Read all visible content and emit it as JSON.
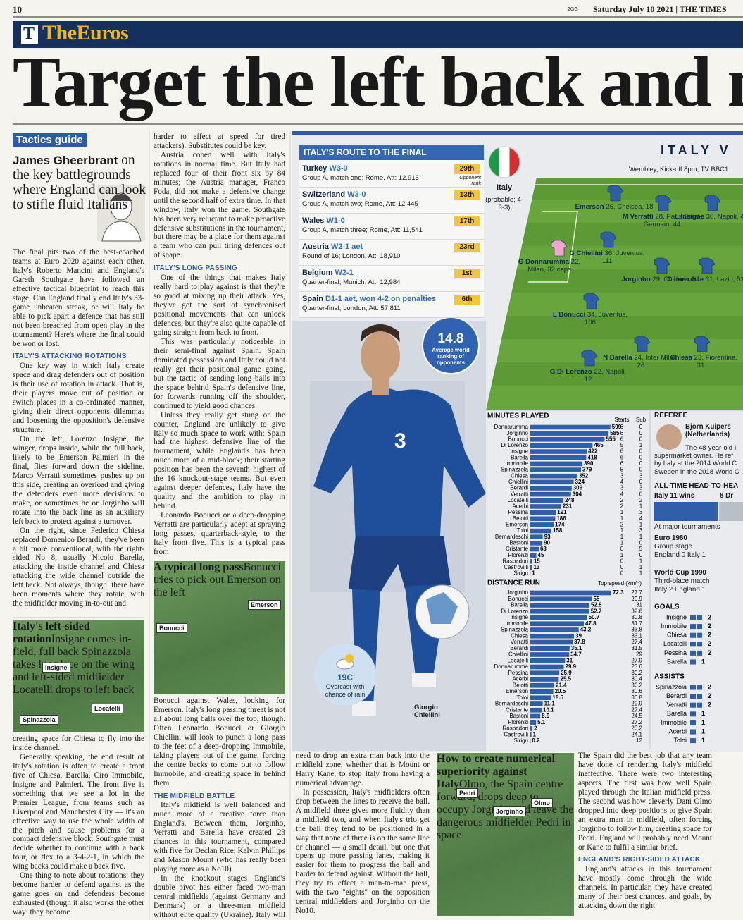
{
  "header": {
    "page": "10",
    "code": "2GG",
    "date": "Saturday July 10 2021 | THE TIMES",
    "logo": "T",
    "section": "TheEuros"
  },
  "headline": "Target the left back and ma",
  "tactics": {
    "label": "Tactics guide",
    "author": "James Gheerbrant",
    "standfirst": "on the key battlegrounds where England can look to stifle fluid Italians"
  },
  "article": {
    "col1a": [
      {
        "text": "The final pits two of the best-coached teams at Euro 2020 against each other. Italy's Roberto Mancini and England's Gareth Southgate have followed an effective tactical blueprint to reach this stage. Can England finally end Italy's 33-game unbeaten streak, or will Italy be able to pick apart a defence that has still not been breached from open play in the tournament? Here's where the final could be won or lost."
      },
      {
        "heading": "ITALY'S ATTACKING ROTATIONS"
      },
      {
        "text": "One key way in which Italy create space and drag defenders out of position is their use of rotation in attack. That is, their players move out of position or switch places in a co-ordinated manner, giving their direct opponents dilemmas and loosening the opposition's defensive structure."
      },
      {
        "text": "On the left, Lorenzo Insigne, the winger, drops inside, while the full back, likely to be Emerson Palmieri in the final, flies forward down the sideline. Marco Verratti sometimes pushes up on this side, creating an overload and giving the defenders even more decisions to make, or sometimes he or Jorginho will rotate into the back line as an auxiliary left back to protect against a turnover."
      },
      {
        "text": "On the right, since Federico Chiesa replaced Domenico Berardi, they've been a bit more conventional, with the right-sided No 8, usually Nicolo Barella, attacking the inside channel and Chiesa attacking the wide channel outside the left back. Not always, though: there have been moments where they rotate, with the midfielder moving in-to-out and"
      }
    ],
    "col1b": [
      {
        "text": "creating space for Chiesa to fly into the inside channel."
      },
      {
        "text": "Generally speaking, the end result of Italy's rotation is often to create a front five of Chiesa, Barella, Ciro Immobile, Insigne and Palmieri. The front five is something that we see a lot in the Premier League, from teams such as Liverpool and Manchester City — it's an effective way to use the whole width of the pitch and cause problems for a compact defensive block. Southgate must decide whether to continue with a back four, or flex to a 3-4-2-1, in which the wing backs could make a back five."
      },
      {
        "text": "One thing to note about rotations: they become harder to defend against as the game goes on and defenders become exhausted (though it also works the other way: they become"
      }
    ],
    "col2a": [
      {
        "text": "harder to effect at speed for tired attackers). Substitutes could be key."
      },
      {
        "text": "Austria coped well with Italy's rotations in normal time. But Italy had replaced four of their front six by 84 minutes; the Austria manager, Franco Foda, did not make a defensive change until the second half of extra time. In that window, Italy won the game. Southgate has been very reluctant to make proactive defensive substitutions in the tournament, but there may be a place for them against a team who can pull tiring defences out of shape."
      },
      {
        "heading": "ITALY'S LONG PASSING"
      },
      {
        "text": "One of the things that makes Italy really hard to play against is that they're so good at mixing up their attack. Yes, they've got the sort of synchronised positional movements that can unlock defences, but they're also quite capable of going straight from back to front."
      },
      {
        "text": "This was particularly noticeable in their semi-final against Spain. Spain dominated possession and Italy could not really get their positional game going, but the tactic of sending long balls into the space behind Spain's defensive line, for forwards running off the shoulder, continued to yield good chances."
      },
      {
        "text": "Unless they really get stung on the counter, England are unlikely to give Italy so much space to work with: Spain had the highest defensive line of the tournament, while England's has been much more of a mid-block; their starting position has been the seventh highest of the 16 knockout-stage teams. But even against deeper defences, Italy have the quality and the ambition to play in behind."
      },
      {
        "text": "Leonardo Bonucci or a deep-dropping Verratti are particularly adept at spraying long passes, quarterback-style, to the Italy front five. This is a typical pass from"
      }
    ],
    "col2b": [
      {
        "text": "Bonucci against Wales, looking for Emerson. Italy's long passing threat is not all about long balls over the top, though. Often Leonardo Bonucci or Giorgio Chiellini will look to punch a long pass to the feet of a deep-dropping Immobile, taking players out of the game, forcing the centre backs to come out to follow Immobile, and creating space in behind them."
      },
      {
        "heading": "THE MIDFIELD BATTLE"
      },
      {
        "text": "Italy's midfield is well balanced and much more of a creative force than England's. Between them, Jorginho, Verratti and Barella have created 23 chances in this tournament, compared with five for Declan Rice, Kalvin Phillips and Mason Mount (who has really been playing more as a No10)."
      },
      {
        "text": "In the knockout stages England's double pivot has either faced two-man central midfields (against Germany and Denmark) or a three-man midfield without elite quality (Ukraine). Italy will be different, and there will be times when England"
      }
    ],
    "col3": [
      {
        "text": "need to drop an extra man back into the midfield zone, whether that is Mount or Harry Kane, to stop Italy from having a numerical advantage."
      },
      {
        "text": "In possession, Italy's midfielders often drop between the lines to receive the ball. A midfield three gives more fluidity than a midfield two, and when Italy's trio get the ball they tend to be positioned in a way that none of three is on the same line or channel — a small detail, but one that opens up more passing lanes, making it easier for them to progress the ball and harder to defend against. Without the ball, they try to effect a man-to-man press, with the two \"eights\" on the opposition central midfielders and Jorginho on the No10."
      }
    ],
    "col5": [
      {
        "text": "The Spain did the best job that any team have done of rendering Italy's midfield ineffective. There were two interesting aspects. The first was how well Spain played through the Italian midfield press. The second was how cleverly Dani Olmo dropped into deep positions to give Spain an extra man in midfield, often forcing Jorginho to follow him, creating space for Pedri. England will probably need Mount or Kane to fulfil a similar brief."
      },
      {
        "heading": "ENGLAND'S RIGHT-SIDED ATTACK"
      },
      {
        "text": "England's attacks in this tournament have mostly come through the wide channels. In particular, they have created many of their best chances, and goals, by attacking down the right"
      }
    ]
  },
  "graphics": [
    {
      "title": "Italy's left-sided rotation",
      "caption": "Insigne comes in-field, full back Spinazzola takes his place on the wing and left-sided midfielder Locatelli drops to left back",
      "labels": [
        "Insigne",
        "Locatelli",
        "Spinazzola"
      ]
    },
    {
      "title": "A typical long pass",
      "caption": "Bonucci tries to pick out Emerson on the left",
      "labels": [
        "Emerson",
        "Bonucci"
      ]
    },
    {
      "title": "How to create numerical superiority against Italy",
      "caption": "Olmo, the Spain centre forward, drops deep to occupy Jorginho and leave the dangerous midfielder Pedri in space",
      "labels": [
        "Pedri",
        "Olmo",
        "Jorginho"
      ]
    }
  ],
  "route": {
    "title": "ITALY'S ROUTE TO THE FINAL",
    "rank_note": "Opponent rank",
    "matches": [
      {
        "team": "Turkey",
        "result": "W3-0",
        "details": "Group A, match one; Rome, Att: 12,916",
        "rank": "29th"
      },
      {
        "team": "Switzerland",
        "result": "W3-0",
        "details": "Group A, match two; Rome, Att: 12,445",
        "rank": "13th"
      },
      {
        "team": "Wales",
        "result": "W1-0",
        "details": "Group A, match three; Rome, Att: 11,541",
        "rank": "17th"
      },
      {
        "team": "Austria",
        "result": "W2-1 aet",
        "details": "Round of 16; London, Att: 18,910",
        "rank": "23rd"
      },
      {
        "team": "Belgium",
        "result": "W2-1",
        "details": "Quarter-final; Munich, Att: 12,984",
        "rank": "1st"
      },
      {
        "team": "Spain",
        "result": "D1-1 aet, won 4-2 on penalties",
        "details": "Quarter-final; London, Att: 57,811",
        "rank": "6th"
      }
    ]
  },
  "average": {
    "value": "14.8",
    "label": "Average world ranking of opponents"
  },
  "weather": {
    "temp": "19C",
    "desc": "Overcast with chance of rain"
  },
  "photo_caption": "Giorgio Chiellini",
  "lineup": {
    "title": "ITALY V",
    "venue": "Wembley, Kick-off 8pm, TV BBC1",
    "team": "Italy",
    "formation": "(probable; 4-3-3)"
  },
  "players": [
    {
      "name": "G Donnarumma",
      "detail": "22, Milan, 32 caps"
    },
    {
      "name": "G Chiellini",
      "detail": "36, Juventus, 111"
    },
    {
      "name": "L Bonucci",
      "detail": "34, Juventus, 106"
    },
    {
      "name": "G Di Lorenzo",
      "detail": "22, Napoli, 12"
    },
    {
      "name": "Emerson",
      "detail": "26, Chelsea, 18"
    },
    {
      "name": "M Verratti",
      "detail": "28, Paris Saint-Germain, 44"
    },
    {
      "name": "L Insigne",
      "detail": "30, Napoli, 46"
    },
    {
      "name": "Jorginho",
      "detail": "29, Chelsea, 34"
    },
    {
      "name": "C Immobile",
      "detail": "31, Lazio, 51"
    },
    {
      "name": "N Barella",
      "detail": "24, Inter Milan, 28"
    },
    {
      "name": "F Chiesa",
      "detail": "23, Fiorentina, 31"
    }
  ],
  "referee": {
    "heading": "REFEREE",
    "name": "Bjorn Kuipers",
    "country": "(Netherlands)",
    "lines": [
      "The 48-year-old I",
      "supermarket owner. He ref",
      "by Italy at the 2014 World C",
      "Sweden in the 2018 World C"
    ]
  },
  "head_to_head": {
    "heading": "ALL-TIME HEAD-TO-HEA",
    "italy": "Italy",
    "wins": "11 wins",
    "draws": "8 Dr",
    "subheading": "At major tournaments",
    "matches": [
      {
        "event": "Euro 1980",
        "stage": "Group stage",
        "score": "England 0 Italy 1"
      },
      {
        "event": "World Cup 1990",
        "stage": "Third-place match",
        "score": "Italy 2 England 1"
      }
    ]
  },
  "chart_data": [
    {
      "type": "bar",
      "style": "bars",
      "title": "MINUTES PLAYED",
      "color": "#2f5fa9",
      "categories": [
        "Donnarumma",
        "Jorginho",
        "Bonucci",
        "Di Lorenzo",
        "Insigne",
        "Barella",
        "Immobile",
        "Spinazzola",
        "Chiesa",
        "Chiellini",
        "Berardi",
        "Verratti",
        "Locatelli",
        "Acerbi",
        "Pessina",
        "Belotti",
        "Emerson",
        "Toloi",
        "Bernardeschi",
        "Bastoni",
        "Cristante",
        "Florenzi",
        "Raspadori",
        "Castrovilli",
        "Sirigu"
      ],
      "values": [
        599,
        585,
        555,
        465,
        422,
        418,
        390,
        379,
        352,
        324,
        309,
        304,
        248,
        231,
        191,
        186,
        174,
        158,
        93,
        90,
        63,
        45,
        15,
        13,
        1
      ],
      "columns": [
        {
          "name": "Starts",
          "values": [
            6,
            6,
            6,
            5,
            6,
            6,
            6,
            5,
            3,
            4,
            3,
            4,
            2,
            2,
            1,
            1,
            2,
            1,
            1,
            1,
            0,
            1,
            0,
            0,
            0
          ]
        },
        {
          "name": "Sub",
          "values": [
            0,
            0,
            0,
            1,
            0,
            0,
            0,
            0,
            3,
            0,
            3,
            0,
            2,
            1,
            3,
            4,
            1,
            3,
            1,
            0,
            5,
            0,
            1,
            1,
            1
          ]
        }
      ]
    },
    {
      "type": "bar",
      "style": "bars",
      "title": "DISTANCE RUN",
      "color": "#2f5fa9",
      "categories": [
        "Jorginho",
        "Bonucci",
        "Barella",
        "Di Lorenzo",
        "Insigne",
        "Immobile",
        "Spinazzola",
        "Chiesa",
        "Verratti",
        "Berardi",
        "Chiellini",
        "Locatelli",
        "Donnarumma",
        "Pessina",
        "Acerbi",
        "Belotti",
        "Emerson",
        "Toloi",
        "Bernardeschi",
        "Cristante",
        "Bastoni",
        "Florenzi",
        "Raspadori",
        "Castrovilli",
        "Sirigu"
      ],
      "values": [
        72.3,
        55,
        52.8,
        52.7,
        50.7,
        47.8,
        43.2,
        39,
        37.8,
        35.1,
        34.7,
        31,
        29.9,
        25.9,
        25.5,
        21.4,
        20.5,
        18.5,
        11.1,
        10.1,
        8.9,
        5.1,
        2,
        1,
        0.2
      ],
      "columns": [
        {
          "name": "Top speed (km/h)",
          "values": [
            27.7,
            29.9,
            31,
            32.6,
            30.8,
            31.7,
            33.8,
            33.1,
            27.4,
            31.5,
            29,
            27.9,
            23.6,
            30.2,
            30.4,
            30.2,
            30.6,
            30.8,
            29.9,
            27.4,
            24.5,
            27.2,
            25.2,
            24.1,
            12
          ]
        }
      ]
    },
    {
      "type": "bar",
      "style": "blocks",
      "title": "GOALS",
      "color": "#2f5fa9",
      "categories": [
        "Insigne",
        "Immobile",
        "Chiesa",
        "Locatelli",
        "Pessina",
        "Barella"
      ],
      "values": [
        2,
        2,
        2,
        2,
        2,
        1
      ]
    },
    {
      "type": "bar",
      "style": "blocks",
      "title": "ASSISTS",
      "color": "#2f5fa9",
      "categories": [
        "Spinazzola",
        "Berardi",
        "Verratti",
        "Barella",
        "Immobile",
        "Acerbi",
        "Toloi"
      ],
      "values": [
        2,
        2,
        2,
        1,
        1,
        1,
        1
      ]
    }
  ]
}
